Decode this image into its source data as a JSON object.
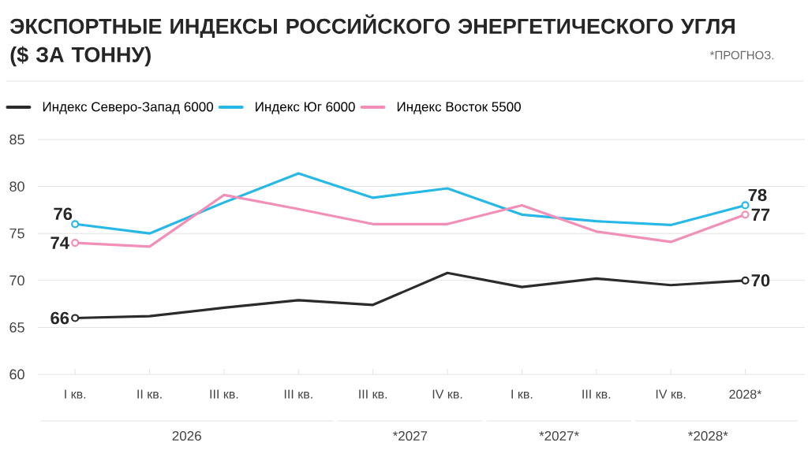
{
  "chart_data": {
    "type": "line",
    "title": "ЭКСПОРТНЫЕ ИНДЕКСЫ РОССИЙСКОГО ЭНЕРГЕТИЧЕСКОГО УГЛЯ ($ ЗА ТОННУ)",
    "annotations": [
      "*ПРОГНОЗ.",
      "2026",
      "*2027",
      "*2027*",
      "*2028*"
    ],
    "categories": [
      "I кв.",
      "II кв.",
      "III кв.",
      "III кв.",
      "III кв.",
      "IV кв.",
      "I кв.",
      "III кв.",
      "IV кв.",
      "2028*"
    ],
    "series": [
      {
        "name": "Индекс Северо-Запад 6000",
        "color": "#2b2b2b",
        "values": [
          66,
          66.2,
          67.1,
          67.9,
          67.4,
          70.8,
          69.3,
          70.2,
          69.5,
          70
        ],
        "value_labels": [
          "66",
          null,
          null,
          null,
          null,
          null,
          null,
          null,
          null,
          "70"
        ]
      },
      {
        "name": "Индекс Юг 6000",
        "color": "#27b8e8",
        "values": [
          76,
          75.0,
          78.3,
          81.4,
          78.8,
          79.8,
          77.0,
          76.3,
          75.9,
          78
        ],
        "value_labels": [
          "76",
          null,
          null,
          null,
          null,
          null,
          null,
          null,
          null,
          "78"
        ]
      },
      {
        "name": "Индекс Восток 5500",
        "color": "#f28fb8",
        "values": [
          74,
          73.6,
          79.1,
          77.6,
          76.0,
          76.0,
          78.0,
          75.2,
          74.1,
          77
        ],
        "value_labels": [
          "74",
          null,
          null,
          null,
          null,
          null,
          null,
          null,
          null,
          "77"
        ]
      }
    ],
    "ylim": [
      60,
      85
    ],
    "yticks": [
      60,
      65,
      70,
      75,
      80,
      85
    ],
    "grid": "y",
    "legend": "top left",
    "line_style": "solid"
  }
}
